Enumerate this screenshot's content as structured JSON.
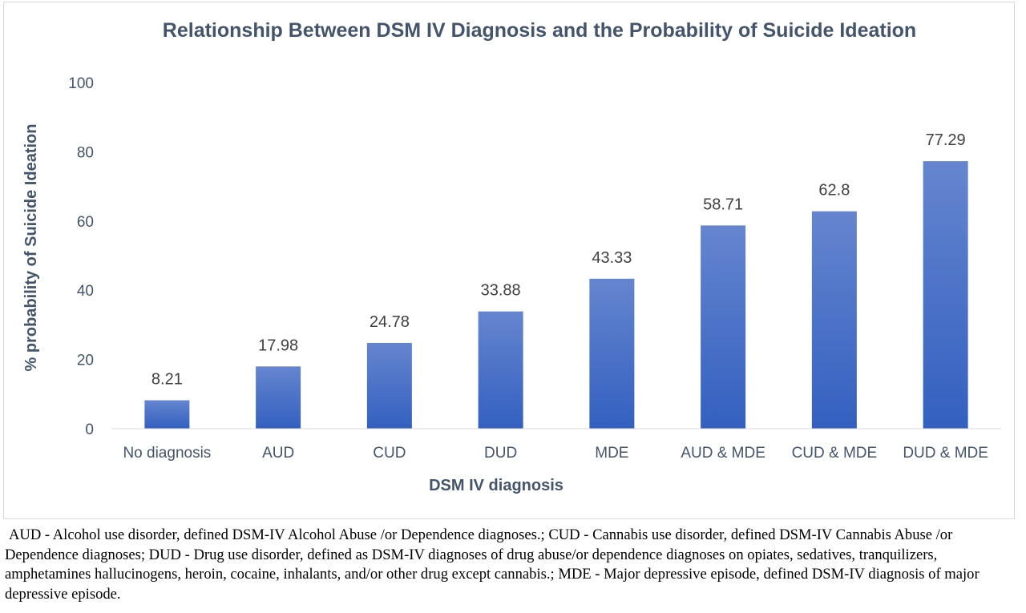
{
  "chart_data": {
    "type": "bar",
    "title": "Relationship Between DSM IV Diagnosis and the Probability of Suicide Ideation",
    "xlabel": "DSM IV diagnosis",
    "ylabel": "% probability of Suicide Ideation",
    "categories": [
      "No diagnosis",
      "AUD",
      "CUD",
      "DUD",
      "MDE",
      "AUD & MDE",
      "CUD & MDE",
      "DUD & MDE"
    ],
    "values": [
      8.21,
      17.98,
      24.78,
      33.88,
      43.33,
      58.71,
      62.8,
      77.29
    ],
    "value_labels": [
      "8.21",
      "17.98",
      "24.78",
      "33.88",
      "43.33",
      "58.71",
      "62.8",
      "77.29"
    ],
    "ylim": [
      0,
      100
    ],
    "yticks": [
      "0",
      "20",
      "40",
      "60",
      "80",
      "100"
    ],
    "grid": false,
    "legend": "none",
    "colors": {
      "bar_top": "#6585cf",
      "bar_bottom": "#3360c0",
      "text": "#44546a",
      "axis": "#d9d9d9"
    }
  },
  "footnote": "AUD - Alcohol use disorder, defined DSM-IV Alcohol Abuse /or Dependence diagnoses.; CUD - Cannabis use disorder, defined DSM-IV Cannabis Abuse /or Dependence diagnoses; DUD - Drug use disorder, defined as DSM-IV diagnoses of drug abuse/or dependence diagnoses on opiates, sedatives, tranquilizers, amphetamines hallucinogens, heroin, cocaine, inhalants, and/or other drug except cannabis.; MDE - Major depressive episode, defined DSM-IV diagnosis of major depressive episode."
}
